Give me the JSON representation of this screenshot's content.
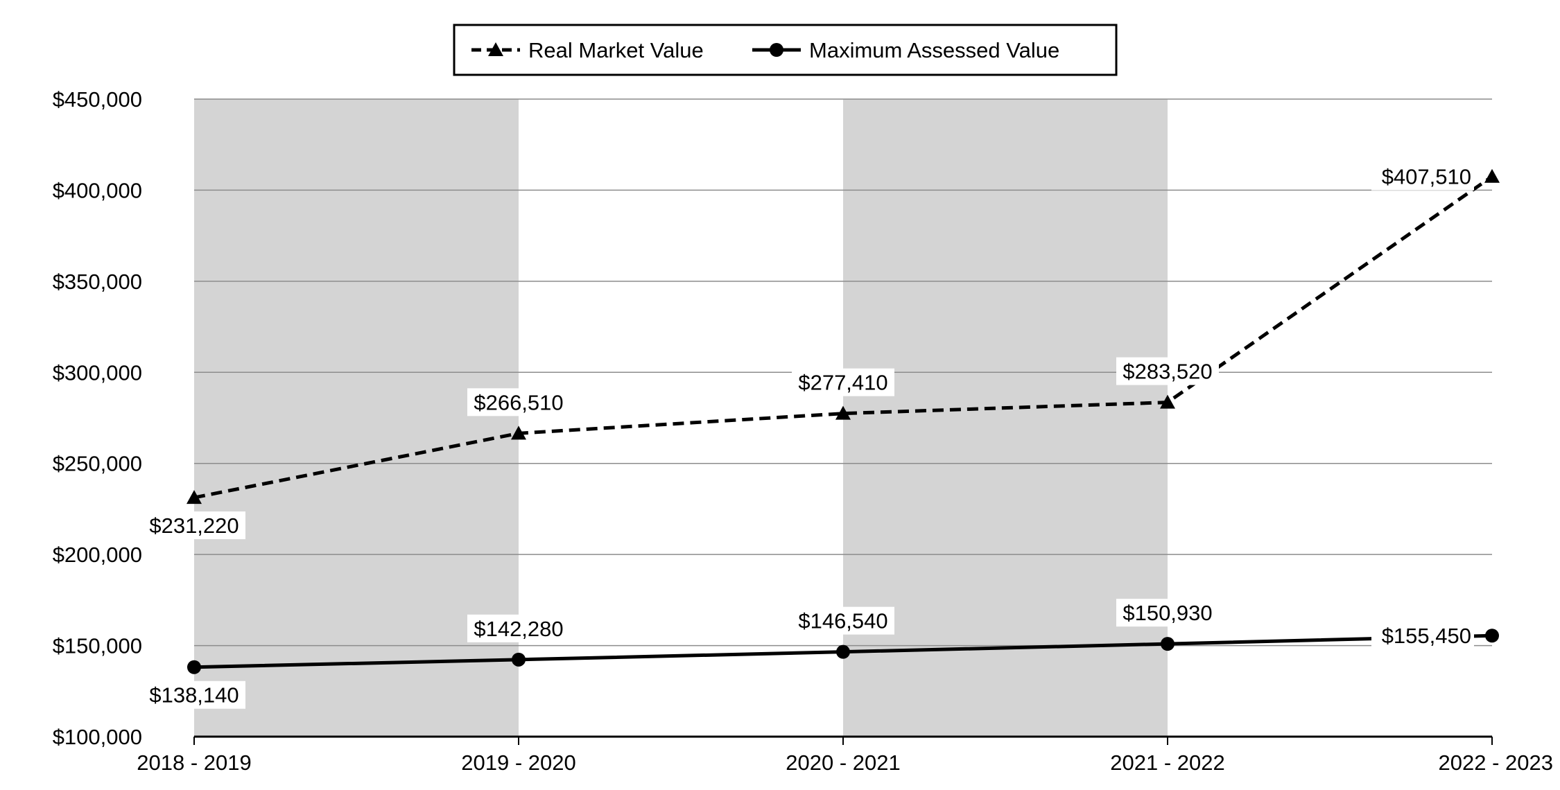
{
  "chart_data": {
    "type": "line",
    "categories": [
      "2018 - 2019",
      "2019 - 2020",
      "2020 - 2021",
      "2021 - 2022",
      "2022 - 2023"
    ],
    "series": [
      {
        "name": "Real Market Value",
        "values": [
          231220,
          266510,
          277410,
          283520,
          407510
        ],
        "labels": [
          "$231,220",
          "$266,510",
          "$277,410",
          "$283,520",
          "$407,510"
        ],
        "line_style": "dashed",
        "marker": "triangle",
        "color": "#000000"
      },
      {
        "name": "Maximum Assessed Value",
        "values": [
          138140,
          142280,
          146540,
          150930,
          155450
        ],
        "labels": [
          "$138,140",
          "$142,280",
          "$146,540",
          "$150,930",
          "$155,450"
        ],
        "line_style": "solid",
        "marker": "circle",
        "color": "#000000"
      }
    ],
    "ylim": [
      100000,
      450000
    ],
    "yticks": [
      {
        "value": 100000,
        "label": "$100,000"
      },
      {
        "value": 150000,
        "label": "$150,000"
      },
      {
        "value": 200000,
        "label": "$200,000"
      },
      {
        "value": 250000,
        "label": "$250,000"
      },
      {
        "value": 300000,
        "label": "$300,000"
      },
      {
        "value": 350000,
        "label": "$350,000"
      },
      {
        "value": 400000,
        "label": "$400,000"
      },
      {
        "value": 450000,
        "label": "$450,000"
      }
    ],
    "grid": true,
    "legend": "top-center",
    "band_color": "#d4d4d4",
    "grid_color": "#8c8c8c"
  }
}
